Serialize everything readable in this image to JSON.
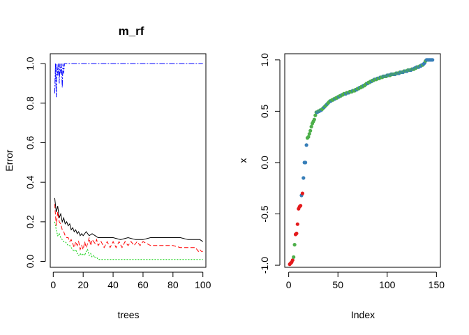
{
  "chart_data": [
    {
      "type": "line",
      "title": "m_rf",
      "xlabel": "trees",
      "ylabel": "Error",
      "xlim": [
        -2,
        102
      ],
      "ylim": [
        -0.03,
        1.05
      ],
      "xticks": [
        "0",
        "20",
        "40",
        "60",
        "80",
        "100"
      ],
      "yticks": [
        "0.0",
        "0.2",
        "0.4",
        "0.6",
        "0.8",
        "1.0"
      ],
      "grid": false,
      "legend": "none",
      "series": [
        {
          "color": "#000000",
          "dash": "solid",
          "x": [
            1,
            2,
            3,
            4,
            5,
            6,
            7,
            8,
            9,
            10,
            11,
            12,
            13,
            14,
            15,
            16,
            17,
            18,
            19,
            20,
            22,
            24,
            26,
            28,
            30,
            35,
            40,
            45,
            50,
            55,
            60,
            65,
            70,
            75,
            80,
            85,
            90,
            95,
            98,
            100
          ],
          "y": [
            0.32,
            0.25,
            0.28,
            0.22,
            0.24,
            0.2,
            0.22,
            0.19,
            0.2,
            0.18,
            0.19,
            0.16,
            0.17,
            0.15,
            0.16,
            0.14,
            0.15,
            0.13,
            0.14,
            0.13,
            0.15,
            0.13,
            0.14,
            0.13,
            0.12,
            0.12,
            0.12,
            0.11,
            0.12,
            0.11,
            0.11,
            0.12,
            0.12,
            0.12,
            0.12,
            0.12,
            0.11,
            0.11,
            0.11,
            0.1
          ]
        },
        {
          "color": "#ff0000",
          "dash": "6,3",
          "x": [
            1,
            2,
            3,
            4,
            5,
            6,
            7,
            8,
            9,
            10,
            11,
            12,
            13,
            14,
            15,
            16,
            17,
            18,
            19,
            20,
            21,
            22,
            23,
            24,
            25,
            26,
            27,
            28,
            29,
            30,
            32,
            34,
            36,
            38,
            40,
            42,
            44,
            46,
            48,
            50,
            52,
            54,
            56,
            58,
            60,
            65,
            70,
            75,
            80,
            85,
            90,
            95,
            97,
            98,
            99,
            100
          ],
          "y": [
            0.29,
            0.18,
            0.25,
            0.2,
            0.19,
            0.16,
            0.15,
            0.13,
            0.12,
            0.12,
            0.1,
            0.11,
            0.09,
            0.07,
            0.1,
            0.08,
            0.1,
            0.06,
            0.08,
            0.06,
            0.1,
            0.07,
            0.09,
            0.12,
            0.08,
            0.11,
            0.1,
            0.09,
            0.11,
            0.08,
            0.1,
            0.07,
            0.1,
            0.07,
            0.1,
            0.07,
            0.1,
            0.07,
            0.1,
            0.08,
            0.1,
            0.08,
            0.1,
            0.08,
            0.1,
            0.08,
            0.08,
            0.08,
            0.08,
            0.07,
            0.07,
            0.07,
            0.05,
            0.06,
            0.05,
            0.05
          ]
        },
        {
          "color": "#00cd00",
          "dash": "2,2",
          "x": [
            1,
            2,
            3,
            4,
            5,
            6,
            7,
            8,
            9,
            10,
            11,
            12,
            13,
            14,
            15,
            16,
            17,
            18,
            19,
            20,
            21,
            22,
            23,
            24,
            25,
            26,
            27,
            28,
            29,
            30,
            40,
            50,
            60,
            70,
            80,
            90,
            100
          ],
          "y": [
            0.2,
            0.16,
            0.13,
            0.14,
            0.12,
            0.11,
            0.1,
            0.1,
            0.09,
            0.08,
            0.08,
            0.07,
            0.06,
            0.05,
            0.06,
            0.04,
            0.03,
            0.04,
            0.03,
            0.04,
            0.03,
            0.05,
            0.06,
            0.03,
            0.04,
            0.02,
            0.03,
            0.02,
            0.02,
            0.01,
            0.01,
            0.01,
            0.01,
            0.01,
            0.01,
            0.01,
            0.01
          ]
        },
        {
          "color": "#0000ff",
          "dash": "8,2,2,2",
          "x": [
            1,
            1.5,
            2,
            2.5,
            3,
            3.5,
            4,
            4.5,
            5,
            5.5,
            6,
            6.5,
            7,
            7.5,
            8,
            9,
            10,
            12,
            15,
            20,
            30,
            40,
            50,
            60,
            70,
            80,
            90,
            100
          ],
          "y": [
            0.85,
            1.0,
            0.83,
            1.0,
            0.94,
            1.0,
            0.9,
            1.0,
            0.95,
            1.0,
            0.88,
            1.0,
            0.95,
            1.0,
            1.0,
            1.0,
            1.0,
            1.0,
            1.0,
            1.0,
            1.0,
            1.0,
            1.0,
            1.0,
            1.0,
            1.0,
            1.0,
            1.0
          ]
        }
      ]
    },
    {
      "type": "scatter",
      "title": "",
      "xlabel": "Index",
      "ylabel": "x",
      "xlim": [
        -4,
        154
      ],
      "ylim": [
        -1.02,
        1.06
      ],
      "xticks": [
        "0",
        "50",
        "100",
        "150"
      ],
      "yticks": [
        "-1.0",
        "-0.5",
        "0.0",
        "0.5",
        "1.0"
      ],
      "grid": false,
      "legend": "none",
      "colors": {
        "1": "#e41a1c",
        "2": "#377eb8",
        "3": "#4daf4a"
      },
      "points": [
        [
          1,
          -0.99,
          1
        ],
        [
          2,
          -0.98,
          1
        ],
        [
          3,
          -0.97,
          1
        ],
        [
          4,
          -0.95,
          1
        ],
        [
          5,
          -0.92,
          3
        ],
        [
          6,
          -0.8,
          3
        ],
        [
          7,
          -0.7,
          1
        ],
        [
          8,
          -0.69,
          1
        ],
        [
          9,
          -0.6,
          1
        ],
        [
          10,
          -0.45,
          1
        ],
        [
          11,
          -0.43,
          1
        ],
        [
          12,
          -0.42,
          1
        ],
        [
          13,
          -0.32,
          2
        ],
        [
          14,
          -0.3,
          1
        ],
        [
          15,
          -0.15,
          2
        ],
        [
          16,
          0.0,
          2
        ],
        [
          17,
          0.0,
          2
        ],
        [
          18,
          0.17,
          2
        ],
        [
          19,
          0.24,
          3
        ],
        [
          20,
          0.25,
          3
        ],
        [
          21,
          0.28,
          3
        ],
        [
          22,
          0.31,
          3
        ],
        [
          23,
          0.35,
          3
        ],
        [
          24,
          0.38,
          3
        ],
        [
          25,
          0.4,
          3
        ],
        [
          26,
          0.42,
          3
        ],
        [
          27,
          0.46,
          3
        ],
        [
          28,
          0.49,
          3
        ],
        [
          29,
          0.49,
          2
        ],
        [
          30,
          0.5,
          3
        ],
        [
          31,
          0.5,
          2
        ],
        [
          32,
          0.51,
          3
        ],
        [
          33,
          0.51,
          2
        ],
        [
          34,
          0.52,
          3
        ],
        [
          35,
          0.53,
          3
        ],
        [
          36,
          0.54,
          2
        ],
        [
          37,
          0.55,
          3
        ],
        [
          38,
          0.56,
          3
        ],
        [
          39,
          0.57,
          2
        ],
        [
          40,
          0.58,
          3
        ],
        [
          41,
          0.59,
          3
        ],
        [
          42,
          0.6,
          3
        ],
        [
          43,
          0.6,
          2
        ],
        [
          44,
          0.61,
          3
        ],
        [
          45,
          0.61,
          3
        ],
        [
          46,
          0.62,
          3
        ],
        [
          47,
          0.62,
          2
        ],
        [
          48,
          0.63,
          3
        ],
        [
          49,
          0.63,
          3
        ],
        [
          50,
          0.64,
          3
        ],
        [
          51,
          0.64,
          2
        ],
        [
          52,
          0.65,
          3
        ],
        [
          53,
          0.65,
          3
        ],
        [
          54,
          0.66,
          2
        ],
        [
          55,
          0.66,
          3
        ],
        [
          56,
          0.67,
          3
        ],
        [
          57,
          0.67,
          3
        ],
        [
          58,
          0.67,
          2
        ],
        [
          59,
          0.68,
          3
        ],
        [
          60,
          0.68,
          3
        ],
        [
          61,
          0.68,
          2
        ],
        [
          62,
          0.69,
          3
        ],
        [
          63,
          0.69,
          3
        ],
        [
          64,
          0.69,
          3
        ],
        [
          65,
          0.7,
          2
        ],
        [
          66,
          0.7,
          3
        ],
        [
          67,
          0.7,
          3
        ],
        [
          68,
          0.71,
          3
        ],
        [
          69,
          0.71,
          2
        ],
        [
          70,
          0.72,
          3
        ],
        [
          71,
          0.72,
          3
        ],
        [
          72,
          0.73,
          2
        ],
        [
          73,
          0.73,
          3
        ],
        [
          74,
          0.74,
          3
        ],
        [
          75,
          0.74,
          3
        ],
        [
          76,
          0.75,
          2
        ],
        [
          77,
          0.75,
          3
        ],
        [
          78,
          0.76,
          3
        ],
        [
          79,
          0.77,
          3
        ],
        [
          80,
          0.77,
          2
        ],
        [
          81,
          0.78,
          3
        ],
        [
          82,
          0.78,
          3
        ],
        [
          83,
          0.79,
          3
        ],
        [
          84,
          0.79,
          2
        ],
        [
          85,
          0.8,
          3
        ],
        [
          86,
          0.8,
          3
        ],
        [
          87,
          0.81,
          2
        ],
        [
          88,
          0.81,
          3
        ],
        [
          89,
          0.81,
          3
        ],
        [
          90,
          0.82,
          2
        ],
        [
          91,
          0.82,
          3
        ],
        [
          92,
          0.82,
          3
        ],
        [
          93,
          0.83,
          2
        ],
        [
          94,
          0.83,
          3
        ],
        [
          95,
          0.83,
          3
        ],
        [
          96,
          0.84,
          2
        ],
        [
          97,
          0.84,
          3
        ],
        [
          98,
          0.84,
          2
        ],
        [
          99,
          0.84,
          3
        ],
        [
          100,
          0.85,
          2
        ],
        [
          101,
          0.85,
          3
        ],
        [
          102,
          0.85,
          2
        ],
        [
          103,
          0.85,
          3
        ],
        [
          104,
          0.86,
          2
        ],
        [
          105,
          0.86,
          3
        ],
        [
          106,
          0.86,
          2
        ],
        [
          107,
          0.86,
          3
        ],
        [
          108,
          0.86,
          2
        ],
        [
          109,
          0.87,
          3
        ],
        [
          110,
          0.87,
          2
        ],
        [
          111,
          0.87,
          3
        ],
        [
          112,
          0.87,
          2
        ],
        [
          113,
          0.88,
          3
        ],
        [
          114,
          0.88,
          2
        ],
        [
          115,
          0.88,
          3
        ],
        [
          116,
          0.88,
          2
        ],
        [
          117,
          0.89,
          3
        ],
        [
          118,
          0.89,
          2
        ],
        [
          119,
          0.89,
          3
        ],
        [
          120,
          0.89,
          2
        ],
        [
          121,
          0.9,
          3
        ],
        [
          122,
          0.9,
          2
        ],
        [
          123,
          0.9,
          3
        ],
        [
          124,
          0.9,
          2
        ],
        [
          125,
          0.91,
          3
        ],
        [
          126,
          0.91,
          2
        ],
        [
          127,
          0.91,
          3
        ],
        [
          128,
          0.92,
          2
        ],
        [
          129,
          0.92,
          3
        ],
        [
          130,
          0.93,
          2
        ],
        [
          131,
          0.93,
          3
        ],
        [
          132,
          0.93,
          2
        ],
        [
          133,
          0.94,
          3
        ],
        [
          134,
          0.94,
          2
        ],
        [
          135,
          0.95,
          2
        ],
        [
          136,
          0.95,
          3
        ],
        [
          137,
          0.96,
          2
        ],
        [
          138,
          0.97,
          2
        ],
        [
          139,
          0.99,
          3
        ],
        [
          140,
          1.0,
          2
        ],
        [
          141,
          1.0,
          2
        ],
        [
          142,
          1.0,
          2
        ],
        [
          143,
          1.0,
          2
        ],
        [
          144,
          1.0,
          2
        ],
        [
          145,
          1.0,
          2
        ],
        [
          146,
          1.0,
          2
        ]
      ]
    }
  ]
}
